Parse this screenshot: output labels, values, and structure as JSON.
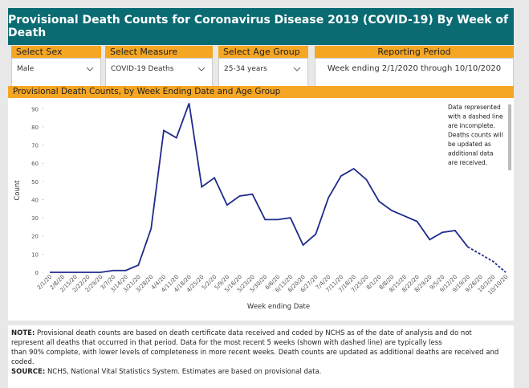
{
  "header": {
    "title": "Provisional Death Counts for Coronavirus Disease 2019 (COVID-19) By Week of Death"
  },
  "filters": [
    {
      "label": "Select Sex",
      "value": "Male"
    },
    {
      "label": "Select Measure",
      "value": "COVID-19 Deaths"
    },
    {
      "label": "Select Age Group",
      "value": "25-34 years"
    }
  ],
  "reporting_period": {
    "label": "Reporting Period",
    "value": "Week ending 2/1/2020 through 10/10/2020"
  },
  "chart_data": {
    "type": "line",
    "title": "Provisional Death Counts, by Week Ending Date and Age Group",
    "x_label": "Week ending Date",
    "y_label": "Count",
    "categories": [
      "2/1/20",
      "2/8/20",
      "2/15/20",
      "2/22/20",
      "2/29/20",
      "3/7/20",
      "3/14/20",
      "3/21/20",
      "3/28/20",
      "4/4/20",
      "4/11/20",
      "4/18/20",
      "4/25/20",
      "5/2/20",
      "5/9/20",
      "5/16/20",
      "5/23/20",
      "5/30/20",
      "6/6/20",
      "6/13/20",
      "6/20/20",
      "6/27/20",
      "7/4/20",
      "7/11/20",
      "7/18/20",
      "7/25/20",
      "8/1/20",
      "8/8/20",
      "8/15/20",
      "8/22/20",
      "8/29/20",
      "9/5/20",
      "9/12/20",
      "9/19/20",
      "9/26/20",
      "10/3/20",
      "10/10/20"
    ],
    "series": [
      {
        "name": "Count",
        "color": "#1f2a8c",
        "values": [
          0,
          0,
          0,
          0,
          0,
          1,
          1,
          4,
          24,
          78,
          74,
          93,
          47,
          52,
          37,
          42,
          43,
          29,
          29,
          30,
          15,
          21,
          41,
          53,
          57,
          51,
          39,
          34,
          31,
          28,
          18,
          22,
          23,
          14,
          10,
          6,
          0
        ],
        "dashed_from": "9/19/20"
      }
    ],
    "ylim": [
      0,
      95
    ],
    "yticks": [
      0,
      10,
      20,
      30,
      40,
      50,
      60,
      70,
      80,
      90
    ],
    "annotation": [
      "Data represented",
      "with a dashed line",
      "are incomplete.",
      "Deaths counts will",
      "be updated as",
      "additional data",
      "are received."
    ]
  },
  "notes": [
    {
      "label": "NOTE:",
      "text": [
        " Provisional death counts are based on death certificate data received and coded by NCHS as of the date of analysis and do not",
        "represent all deaths that occurred in that period. Data for the most recent 5 weeks (shown with dashed line) are typically less",
        "than 90% complete, with lower levels of completeness in more recent weeks.  Death counts are updated as additional deaths are received and",
        "coded."
      ]
    },
    {
      "label": "SOURCE:",
      "text": [
        " NCHS, National Vital Statistics System. Estimates are based on provisional data."
      ]
    }
  ]
}
